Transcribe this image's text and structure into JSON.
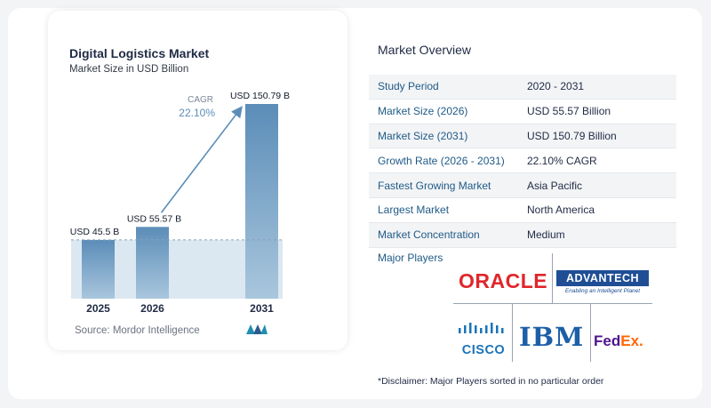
{
  "chart_card": {
    "title": "Digital Logistics Market",
    "subtitle": "Market Size in USD Billion",
    "source": "Source:  Mordor Intelligence"
  },
  "chart_data": {
    "type": "bar",
    "title": "Digital Logistics Market",
    "subtitle": "Market Size in USD Billion",
    "categories": [
      "2025",
      "2026",
      "2031"
    ],
    "values": [
      45.5,
      55.57,
      150.79
    ],
    "data_labels": [
      "USD 45.5 B",
      "USD 55.57 B",
      "USD 150.79 B"
    ],
    "cagr_label": "CAGR",
    "cagr_value": "22.10%",
    "xlabel": "",
    "ylabel": "",
    "ylim": [
      0,
      160
    ],
    "grid": false,
    "colors": {
      "bar_top": "#5b8db8",
      "bar_bottom": "#a9c6dd",
      "band": "#dce8f1",
      "arrow": "#5b8db8",
      "cagr_text": "#5b8db8"
    }
  },
  "overview": {
    "title": "Market Overview",
    "rows": [
      {
        "key": "Study Period",
        "value": "2020 - 2031"
      },
      {
        "key": "Market Size (2026)",
        "value": "USD 55.57 Billion"
      },
      {
        "key": "Market Size (2031)",
        "value": "USD 150.79 Billion"
      },
      {
        "key": "Growth Rate (2026 - 2031)",
        "value": "22.10% CAGR"
      },
      {
        "key": "Fastest Growing Market",
        "value": "Asia Pacific"
      },
      {
        "key": "Largest Market",
        "value": "North America"
      },
      {
        "key": "Market Concentration",
        "value": "Medium"
      }
    ]
  },
  "players": {
    "title": "Major Players",
    "logos": [
      "ORACLE",
      "ADVANTECH",
      "Enabling an Intelligent Planet",
      "CISCO",
      "IBM",
      "Fed",
      "Ex."
    ]
  },
  "disclaimer": "*Disclaimer: Major Players sorted in no particular order"
}
